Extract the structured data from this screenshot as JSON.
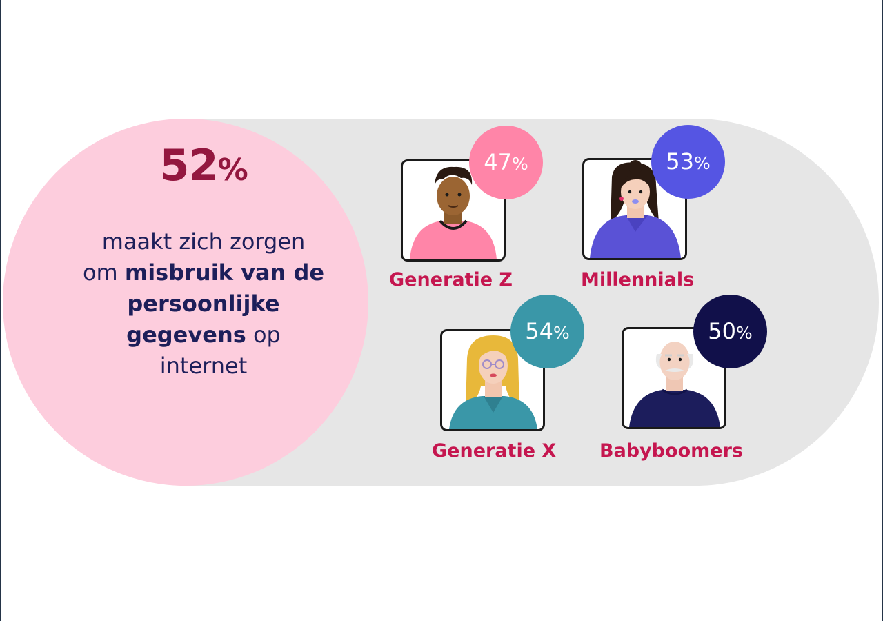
{
  "headline": {
    "value": "52",
    "unit": "%"
  },
  "statement": {
    "part1": "maakt zich zorgen",
    "part2": "om ",
    "bold1": "misbruik van de",
    "bold2": "persoonlijke",
    "bold3": "gegevens",
    "part3": " op",
    "part4": "internet"
  },
  "generations": [
    {
      "label": "Generatie Z",
      "value": "47",
      "unit": "%",
      "bubble_color": "#ff85a8"
    },
    {
      "label": "Millennials",
      "value": "53",
      "unit": "%",
      "bubble_color": "#5555e3"
    },
    {
      "label": "Generatie X",
      "value": "54",
      "unit": "%",
      "bubble_color": "#3a97a8"
    },
    {
      "label": "Babyboomers",
      "value": "50",
      "unit": "%",
      "bubble_color": "#11104a"
    }
  ],
  "colors": {
    "accent": "#c5164f",
    "headline": "#93173f",
    "text": "#1d1f5a",
    "pink_circle": "#fdcddd",
    "pill_background": "#e6e6e6"
  }
}
